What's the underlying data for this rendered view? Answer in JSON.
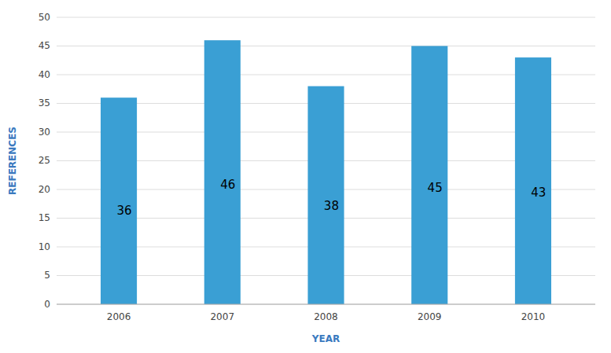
{
  "chart_data": {
    "type": "bar",
    "categories": [
      "2006",
      "2007",
      "2008",
      "2009",
      "2010"
    ],
    "values": [
      36,
      46,
      38,
      45,
      43
    ],
    "color": "#3a9fd4",
    "xlabel": "YEAR",
    "ylabel": "REFERENCES",
    "ylim": [
      0,
      50
    ],
    "yticks": [
      0,
      5,
      10,
      15,
      20,
      25,
      30,
      35,
      40,
      45,
      50
    ],
    "grid": true,
    "data_labels": true
  }
}
